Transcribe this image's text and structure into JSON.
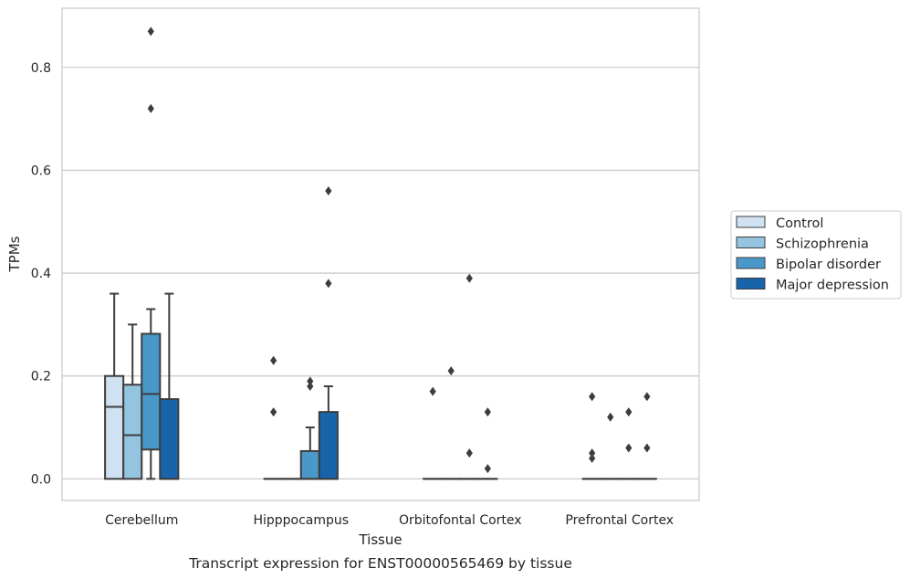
{
  "chart_data": {
    "type": "box",
    "title": "",
    "caption": "Transcript expression for ENST00000565469 by tissue",
    "xlabel": "Tissue",
    "ylabel": "TPMs",
    "ylim": [
      -0.042,
      0.915
    ],
    "yticks": [
      0.0,
      0.2,
      0.4,
      0.6,
      0.8
    ],
    "ytick_labels": [
      "0.0",
      "0.2",
      "0.4",
      "0.6",
      "0.8"
    ],
    "grid": "horizontal",
    "legend_position": "right",
    "categories": [
      "Cerebellum",
      "Hipppocampus",
      "Orbitofontal Cortex",
      "Prefrontal Cortex"
    ],
    "series": [
      {
        "name": "Control",
        "color": "#d0e1f2",
        "boxes": [
          {
            "whislo": 0.0,
            "q1": 0.0,
            "med": 0.14,
            "q3": 0.2,
            "whishi": 0.36,
            "fliers": []
          },
          {
            "whislo": 0.0,
            "q1": 0.0,
            "med": 0.0,
            "q3": 0.0,
            "whishi": 0.0,
            "fliers": [
              0.13,
              0.23
            ]
          },
          {
            "whislo": 0.0,
            "q1": 0.0,
            "med": 0.0,
            "q3": 0.0,
            "whishi": 0.0,
            "fliers": [
              0.17
            ]
          },
          {
            "whislo": 0.0,
            "q1": 0.0,
            "med": 0.0,
            "q3": 0.0,
            "whishi": 0.0,
            "fliers": [
              0.16,
              0.05,
              0.04
            ]
          }
        ]
      },
      {
        "name": "Schizophrenia",
        "color": "#94c4df",
        "boxes": [
          {
            "whislo": 0.0,
            "q1": 0.0,
            "med": 0.085,
            "q3": 0.183,
            "whishi": 0.3,
            "fliers": []
          },
          {
            "whislo": 0.0,
            "q1": 0.0,
            "med": 0.0,
            "q3": 0.0,
            "whishi": 0.0,
            "fliers": []
          },
          {
            "whislo": 0.0,
            "q1": 0.0,
            "med": 0.0,
            "q3": 0.0,
            "whishi": 0.0,
            "fliers": [
              0.21
            ]
          },
          {
            "whislo": 0.0,
            "q1": 0.0,
            "med": 0.0,
            "q3": 0.0,
            "whishi": 0.0,
            "fliers": [
              0.12
            ]
          }
        ]
      },
      {
        "name": "Bipolar disorder",
        "color": "#4a98c9",
        "boxes": [
          {
            "whislo": 0.0,
            "q1": 0.057,
            "med": 0.165,
            "q3": 0.282,
            "whishi": 0.33,
            "fliers": [
              0.72,
              0.87
            ]
          },
          {
            "whislo": 0.0,
            "q1": 0.0,
            "med": 0.0,
            "q3": 0.054,
            "whishi": 0.1,
            "fliers": [
              0.18,
              0.19
            ]
          },
          {
            "whislo": 0.0,
            "q1": 0.0,
            "med": 0.0,
            "q3": 0.0,
            "whishi": 0.0,
            "fliers": [
              0.05,
              0.39
            ]
          },
          {
            "whislo": 0.0,
            "q1": 0.0,
            "med": 0.0,
            "q3": 0.0,
            "whishi": 0.0,
            "fliers": [
              0.13,
              0.06
            ]
          }
        ]
      },
      {
        "name": "Major depression",
        "color": "#1764ab",
        "boxes": [
          {
            "whislo": 0.0,
            "q1": 0.0,
            "med": 0.0,
            "q3": 0.155,
            "whishi": 0.36,
            "fliers": []
          },
          {
            "whislo": 0.0,
            "q1": 0.0,
            "med": 0.0,
            "q3": 0.13,
            "whishi": 0.18,
            "fliers": [
              0.38,
              0.56
            ]
          },
          {
            "whislo": 0.0,
            "q1": 0.0,
            "med": 0.0,
            "q3": 0.0,
            "whishi": 0.0,
            "fliers": [
              0.02,
              0.13
            ]
          },
          {
            "whislo": 0.0,
            "q1": 0.0,
            "med": 0.0,
            "q3": 0.0,
            "whishi": 0.0,
            "fliers": [
              0.16,
              0.06
            ]
          }
        ]
      }
    ]
  }
}
